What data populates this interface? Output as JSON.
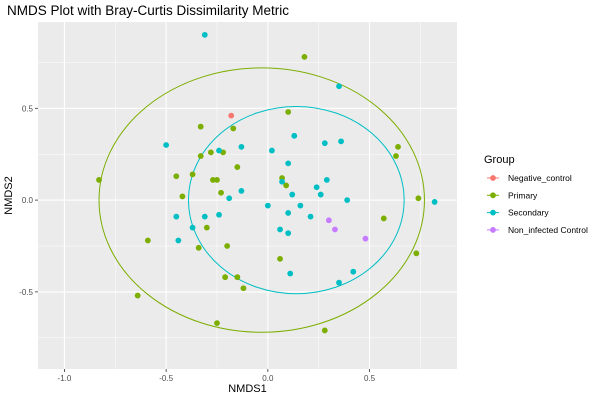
{
  "chart_data": {
    "type": "scatter",
    "title": "NMDS Plot with Bray-Curtis Dissimilarity Metric",
    "xlabel": "NMDS1",
    "ylabel": "NMDS2",
    "xlim": [
      -1.13,
      0.93
    ],
    "ylim": [
      -0.92,
      0.97
    ],
    "x_ticks": [
      -1.0,
      -0.5,
      0.0,
      0.5
    ],
    "x_tick_labels": [
      "-1.0",
      "-0.5",
      "0.0",
      "0.5"
    ],
    "y_ticks": [
      -0.5,
      0.0,
      0.5
    ],
    "y_tick_labels": [
      "-0.5",
      "0.0",
      "0.5"
    ],
    "grid": true,
    "background": "#ebebeb",
    "legend": {
      "title": "Group",
      "position": "right",
      "entries": [
        {
          "name": "Negative_control",
          "color": "#F8766D"
        },
        {
          "name": "Primary",
          "color": "#7CAE00"
        },
        {
          "name": "Secondary",
          "color": "#00BFC4"
        },
        {
          "name": "Non_infected Control",
          "color": "#C77CFF"
        }
      ]
    },
    "ellipses": [
      {
        "group": "Primary",
        "cx": -0.03,
        "cy": 0.0,
        "rx": 0.8,
        "ry": 0.72,
        "color": "#7CAE00"
      },
      {
        "group": "Secondary",
        "cx": 0.14,
        "cy": 0.0,
        "rx": 0.53,
        "ry": 0.51,
        "color": "#00BFC4"
      }
    ],
    "series": [
      {
        "name": "Negative_control",
        "color": "#F8766D",
        "points": [
          [
            -0.18,
            0.46
          ]
        ]
      },
      {
        "name": "Primary",
        "color": "#7CAE00",
        "points": [
          [
            -0.83,
            0.11
          ],
          [
            -0.59,
            -0.22
          ],
          [
            -0.64,
            -0.52
          ],
          [
            -0.45,
            0.13
          ],
          [
            -0.42,
            0.02
          ],
          [
            -0.37,
            0.14
          ],
          [
            -0.33,
            0.4
          ],
          [
            -0.33,
            0.24
          ],
          [
            -0.34,
            -0.26
          ],
          [
            -0.27,
            0.11
          ],
          [
            -0.28,
            0.26
          ],
          [
            -0.22,
            0.26
          ],
          [
            -0.25,
            0.11
          ],
          [
            -0.23,
            0.04
          ],
          [
            -0.17,
            0.39
          ],
          [
            -0.15,
            0.18
          ],
          [
            -0.2,
            -0.25
          ],
          [
            -0.25,
            -0.67
          ],
          [
            -0.21,
            -0.42
          ],
          [
            -0.15,
            -0.42
          ],
          [
            -0.12,
            -0.48
          ],
          [
            -0.3,
            -0.15
          ],
          [
            0.07,
            0.12
          ],
          [
            0.09,
            0.08
          ],
          [
            0.18,
            0.78
          ],
          [
            0.1,
            0.48
          ],
          [
            0.06,
            -0.32
          ],
          [
            0.28,
            -0.71
          ],
          [
            0.57,
            -0.1
          ],
          [
            0.63,
            0.24
          ],
          [
            0.64,
            0.29
          ],
          [
            0.74,
            0.01
          ],
          [
            0.73,
            -0.29
          ]
        ]
      },
      {
        "name": "Secondary",
        "color": "#00BFC4",
        "points": [
          [
            -0.31,
            0.9
          ],
          [
            -0.5,
            0.3
          ],
          [
            -0.45,
            -0.09
          ],
          [
            -0.44,
            -0.22
          ],
          [
            -0.37,
            -0.15
          ],
          [
            -0.31,
            -0.09
          ],
          [
            -0.24,
            0.27
          ],
          [
            -0.13,
            0.29
          ],
          [
            -0.24,
            -0.08
          ],
          [
            -0.13,
            0.05
          ],
          [
            -0.19,
            0.01
          ],
          [
            0.02,
            0.27
          ],
          [
            0.0,
            -0.03
          ],
          [
            0.06,
            -0.16
          ],
          [
            0.07,
            0.1
          ],
          [
            0.1,
            0.2
          ],
          [
            0.1,
            -0.07
          ],
          [
            0.12,
            0.03
          ],
          [
            0.13,
            0.35
          ],
          [
            0.16,
            -0.03
          ],
          [
            0.1,
            -0.18
          ],
          [
            0.11,
            -0.4
          ],
          [
            0.21,
            -0.09
          ],
          [
            0.24,
            0.07
          ],
          [
            0.26,
            0.03
          ],
          [
            0.28,
            0.31
          ],
          [
            0.36,
            0.32
          ],
          [
            0.29,
            0.11
          ],
          [
            0.35,
            0.62
          ],
          [
            0.42,
            -0.39
          ],
          [
            0.35,
            -0.45
          ],
          [
            0.39,
            0.0
          ],
          [
            0.82,
            -0.01
          ]
        ]
      },
      {
        "name": "Non_infected Control",
        "color": "#C77CFF",
        "points": [
          [
            0.3,
            -0.11
          ],
          [
            0.33,
            -0.16
          ],
          [
            0.48,
            -0.21
          ]
        ]
      }
    ]
  }
}
